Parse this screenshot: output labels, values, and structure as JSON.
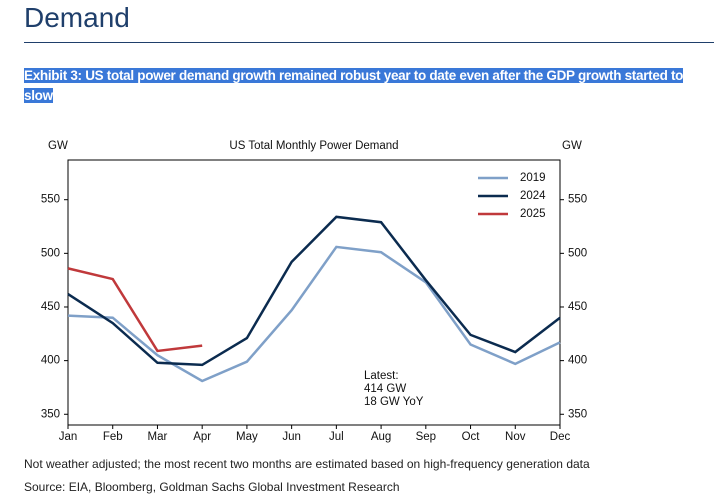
{
  "header": {
    "title": "Demand"
  },
  "exhibit_title": "Exhibit 3: US total power demand growth remained robust year to date even after the GDP growth started to slow",
  "chart_data": {
    "type": "line",
    "title": "US Total Monthly Power Demand",
    "y_label": "GW",
    "y2_label": "GW",
    "categories": [
      "Jan",
      "Feb",
      "Mar",
      "Apr",
      "May",
      "Jun",
      "Jul",
      "Aug",
      "Sep",
      "Oct",
      "Nov",
      "Dec"
    ],
    "series": [
      {
        "name": "2019",
        "color": "#7fa0c8",
        "values": [
          442,
          440,
          405,
          381,
          399,
          447,
          506,
          501,
          473,
          415,
          397,
          417
        ]
      },
      {
        "name": "2024",
        "color": "#0b2b4f",
        "values": [
          462,
          435,
          398,
          396,
          421,
          492,
          534,
          529,
          475,
          424,
          408,
          440
        ]
      },
      {
        "name": "2025",
        "color": "#c0393b",
        "values": [
          486,
          476,
          409,
          414,
          null,
          null,
          null,
          null,
          null,
          null,
          null,
          null
        ]
      }
    ],
    "ylim": [
      340,
      587
    ],
    "yticks": [
      350,
      400,
      450,
      500,
      550
    ],
    "y2lim": [
      340,
      587
    ],
    "y2ticks": [
      350,
      400,
      450,
      500,
      550
    ],
    "legend": "upper right",
    "annotation": [
      "Latest:",
      "414 GW",
      "18 GW YoY"
    ]
  },
  "footnote": "Not weather adjusted; the most recent two months are estimated based on high-frequency generation data",
  "source": "Source: EIA, Bloomberg, Goldman Sachs Global Investment Research"
}
